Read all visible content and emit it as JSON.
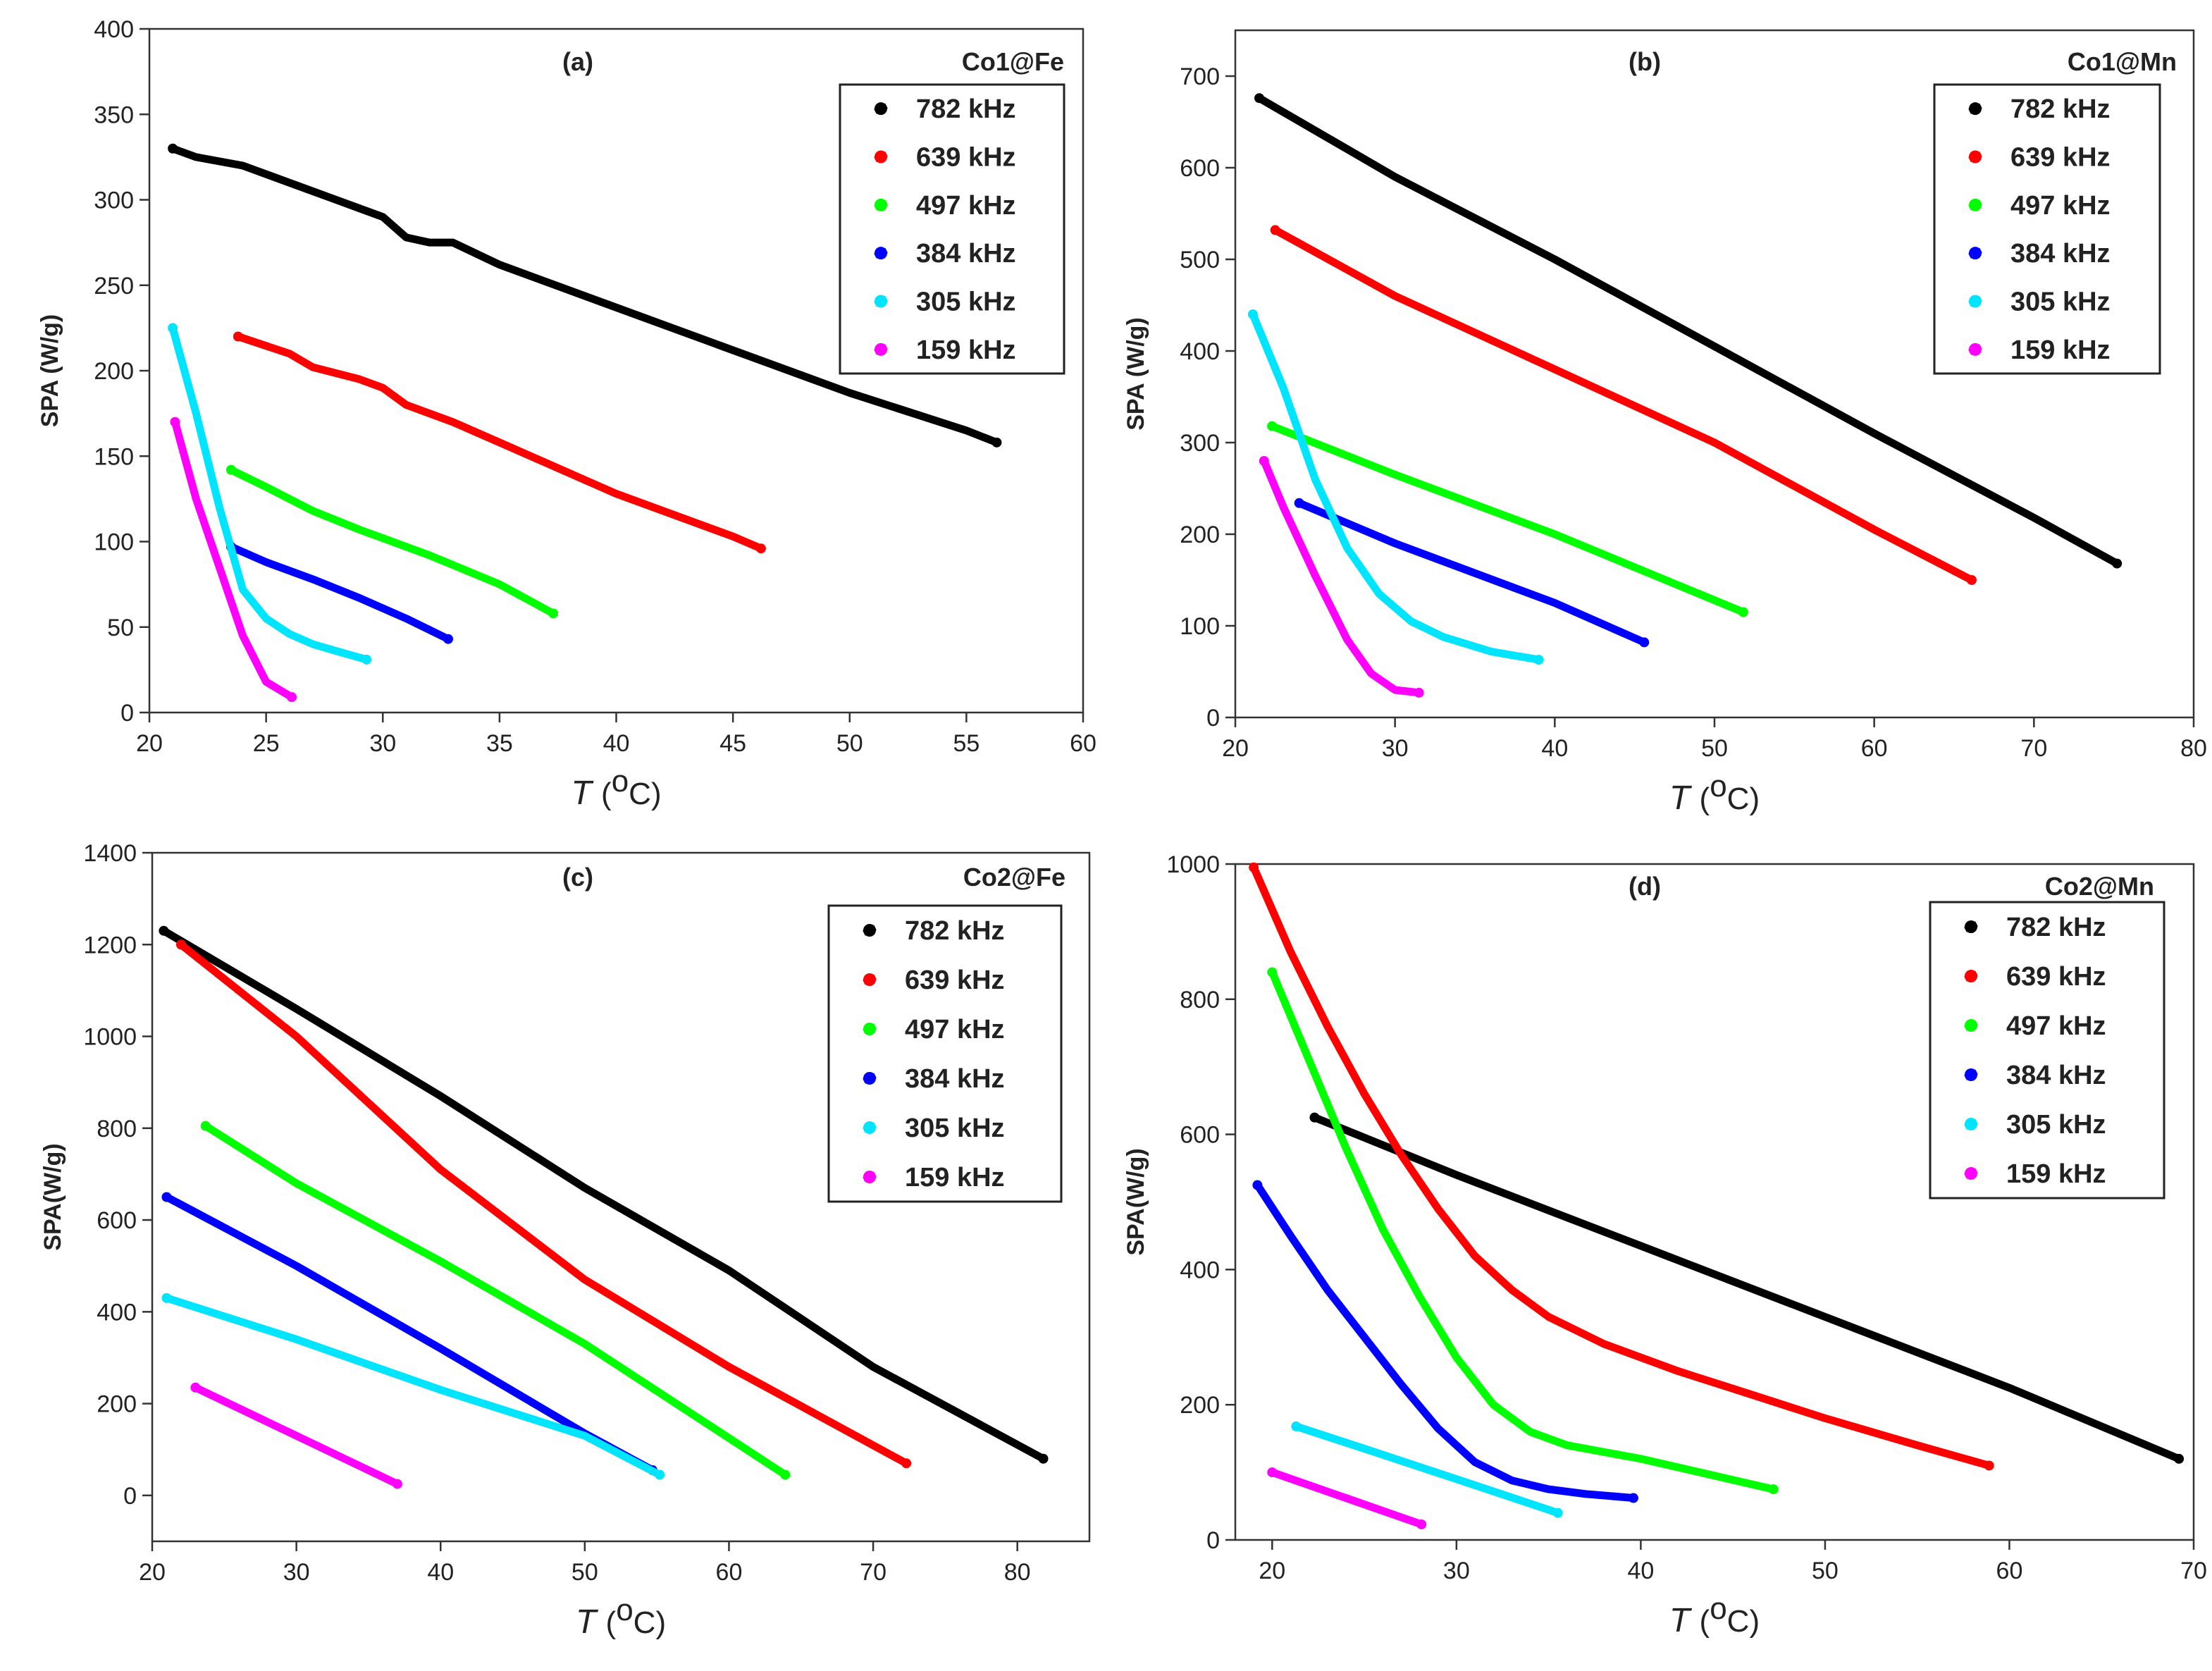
{
  "chart_data": [
    {
      "type": "line",
      "panel_label": "(a)",
      "title": "Co1@Fe",
      "xlabel": {
        "symbol": "T",
        "unit": "oC"
      },
      "ylabel": "SPA (W/g)",
      "xlim": [
        20,
        60
      ],
      "ylim": [
        0,
        400
      ],
      "xticks": [
        "20",
        "25",
        "30",
        "35",
        "40",
        "45",
        "50",
        "55",
        "60"
      ],
      "yticks": [
        "0",
        "50",
        "100",
        "150",
        "200",
        "250",
        "300",
        "350",
        "400"
      ],
      "legend_position": "top-right",
      "series": [
        {
          "name": "782 kHz",
          "color": "#000000",
          "x": [
            21,
            22,
            24,
            26,
            28,
            30,
            31,
            32,
            33,
            35,
            40,
            45,
            50,
            55,
            56.3
          ],
          "y": [
            330,
            325,
            320,
            310,
            300,
            290,
            278,
            275,
            275,
            262,
            237,
            212,
            187,
            165,
            158
          ]
        },
        {
          "name": "639 kHz",
          "color": "#ff0000",
          "x": [
            23.8,
            26,
            27,
            29,
            30,
            31,
            33,
            35,
            40,
            45,
            46.2
          ],
          "y": [
            220,
            210,
            202,
            195,
            190,
            180,
            170,
            158,
            128,
            103,
            96
          ]
        },
        {
          "name": "497 kHz",
          "color": "#00ff00",
          "x": [
            23.5,
            25,
            27,
            29,
            30,
            32,
            35,
            37.3
          ],
          "y": [
            142,
            132,
            118,
            107,
            102,
            92,
            75,
            58
          ]
        },
        {
          "name": "384 kHz",
          "color": "#0000ff",
          "x": [
            23.5,
            25,
            27,
            29,
            31,
            32.8
          ],
          "y": [
            97,
            88,
            78,
            67,
            55,
            43
          ]
        },
        {
          "name": "305 kHz",
          "color": "#00e5ff",
          "x": [
            21,
            22,
            23,
            24,
            25,
            26,
            27,
            28,
            29.3
          ],
          "y": [
            225,
            175,
            120,
            72,
            55,
            46,
            40,
            36,
            31
          ]
        },
        {
          "name": "159 kHz",
          "color": "#ff00ff",
          "x": [
            21.1,
            22,
            23,
            24,
            25,
            26.1
          ],
          "y": [
            170,
            125,
            85,
            45,
            18,
            9
          ]
        }
      ]
    },
    {
      "type": "line",
      "panel_label": "(b)",
      "title": "Co1@Mn",
      "xlabel": {
        "symbol": "T",
        "unit": "oC"
      },
      "ylabel": "SPA (W/g)",
      "xlim": [
        20,
        80
      ],
      "ylim": [
        0,
        750
      ],
      "xticks": [
        "20",
        "30",
        "40",
        "50",
        "60",
        "70",
        "80"
      ],
      "yticks": [
        "0",
        "100",
        "200",
        "300",
        "400",
        "500",
        "600",
        "700"
      ],
      "legend_position": "top-right",
      "series": [
        {
          "name": "782 kHz",
          "color": "#000000",
          "x": [
            21.5,
            30,
            40,
            50,
            60,
            70,
            75.2
          ],
          "y": [
            676,
            590,
            500,
            405,
            310,
            218,
            168
          ]
        },
        {
          "name": "639 kHz",
          "color": "#ff0000",
          "x": [
            22.5,
            30,
            40,
            50,
            60,
            66.1
          ],
          "y": [
            532,
            460,
            380,
            300,
            205,
            150
          ]
        },
        {
          "name": "497 kHz",
          "color": "#00ff00",
          "x": [
            22.3,
            30,
            40,
            51.8
          ],
          "y": [
            318,
            265,
            200,
            115
          ]
        },
        {
          "name": "384 kHz",
          "color": "#0000ff",
          "x": [
            24,
            30,
            40,
            45.6
          ],
          "y": [
            234,
            190,
            125,
            82
          ]
        },
        {
          "name": "305 kHz",
          "color": "#00e5ff",
          "x": [
            21.1,
            23,
            25,
            27,
            29,
            31,
            33,
            36,
            39
          ],
          "y": [
            440,
            360,
            260,
            185,
            135,
            105,
            88,
            72,
            63
          ]
        },
        {
          "name": "159 kHz",
          "color": "#ff00ff",
          "x": [
            21.8,
            23,
            25,
            27,
            28.5,
            30,
            31.5
          ],
          "y": [
            280,
            230,
            155,
            85,
            48,
            30,
            27
          ]
        }
      ]
    },
    {
      "type": "line",
      "panel_label": "(c)",
      "title": "Co2@Fe",
      "xlabel": {
        "symbol": "T",
        "unit": "oC"
      },
      "ylabel": "SPA(W/g)",
      "xlim": [
        20,
        85
      ],
      "ylim": [
        -100,
        1400
      ],
      "xticks": [
        "20",
        "30",
        "40",
        "50",
        "60",
        "70",
        "80"
      ],
      "yticks": [
        "0",
        "200",
        "400",
        "600",
        "800",
        "1000",
        "1200",
        "1400"
      ],
      "legend_position": "top-right",
      "series": [
        {
          "name": "782 kHz",
          "color": "#000000",
          "x": [
            20.8,
            30,
            40,
            50,
            60,
            70,
            81.8
          ],
          "y": [
            1230,
            1060,
            870,
            670,
            490,
            280,
            80
          ]
        },
        {
          "name": "639 kHz",
          "color": "#ff0000",
          "x": [
            22,
            30,
            40,
            50,
            60,
            72.3
          ],
          "y": [
            1200,
            1000,
            710,
            470,
            280,
            70
          ]
        },
        {
          "name": "497 kHz",
          "color": "#00ff00",
          "x": [
            23.7,
            30,
            40,
            50,
            63.9
          ],
          "y": [
            805,
            680,
            510,
            330,
            45
          ]
        },
        {
          "name": "384 kHz",
          "color": "#0000ff",
          "x": [
            21,
            30,
            40,
            50,
            54.7
          ],
          "y": [
            650,
            500,
            320,
            135,
            55
          ]
        },
        {
          "name": "305 kHz",
          "color": "#00e5ff",
          "x": [
            21,
            30,
            40,
            50,
            55.2
          ],
          "y": [
            430,
            340,
            230,
            130,
            45
          ]
        },
        {
          "name": "159 kHz",
          "color": "#ff00ff",
          "x": [
            23,
            30,
            37
          ],
          "y": [
            235,
            130,
            25
          ]
        }
      ]
    },
    {
      "type": "line",
      "panel_label": "(d)",
      "title": "Co2@Mn",
      "xlabel": {
        "symbol": "T",
        "unit": "oC"
      },
      "ylabel": "SPA(W/g)",
      "xlim": [
        18,
        70
      ],
      "ylim": [
        0,
        1000
      ],
      "xticks": [
        "20",
        "30",
        "40",
        "50",
        "60",
        "70"
      ],
      "yticks": [
        "0",
        "200",
        "400",
        "600",
        "800",
        "1000"
      ],
      "legend_position": "top-right",
      "series": [
        {
          "name": "782 kHz",
          "color": "#000000",
          "x": [
            22.3,
            30,
            40,
            50,
            60,
            69.2
          ],
          "y": [
            625,
            540,
            435,
            330,
            225,
            120
          ]
        },
        {
          "name": "639 kHz",
          "color": "#ff0000",
          "x": [
            19,
            21,
            23,
            25,
            27,
            29,
            31,
            33,
            35,
            38,
            42,
            46,
            50,
            55,
            58.9
          ],
          "y": [
            995,
            870,
            760,
            660,
            570,
            490,
            420,
            370,
            330,
            290,
            250,
            215,
            180,
            140,
            110
          ]
        },
        {
          "name": "497 kHz",
          "color": "#00ff00",
          "x": [
            20,
            22,
            24,
            26,
            28,
            30,
            32,
            34,
            36,
            40,
            44,
            47.2
          ],
          "y": [
            840,
            710,
            580,
            460,
            360,
            270,
            200,
            160,
            140,
            120,
            95,
            75
          ]
        },
        {
          "name": "384 kHz",
          "color": "#0000ff",
          "x": [
            19.2,
            21,
            23,
            25,
            27,
            29,
            31,
            33,
            35,
            37,
            39.6
          ],
          "y": [
            525,
            450,
            370,
            300,
            230,
            165,
            115,
            88,
            75,
            68,
            62
          ]
        },
        {
          "name": "305 kHz",
          "color": "#00e5ff",
          "x": [
            21.3,
            25,
            30,
            35.5
          ],
          "y": [
            168,
            135,
            90,
            40
          ]
        },
        {
          "name": "159 kHz",
          "color": "#ff00ff",
          "x": [
            20,
            24,
            28.1
          ],
          "y": [
            100,
            62,
            23
          ]
        }
      ]
    }
  ]
}
